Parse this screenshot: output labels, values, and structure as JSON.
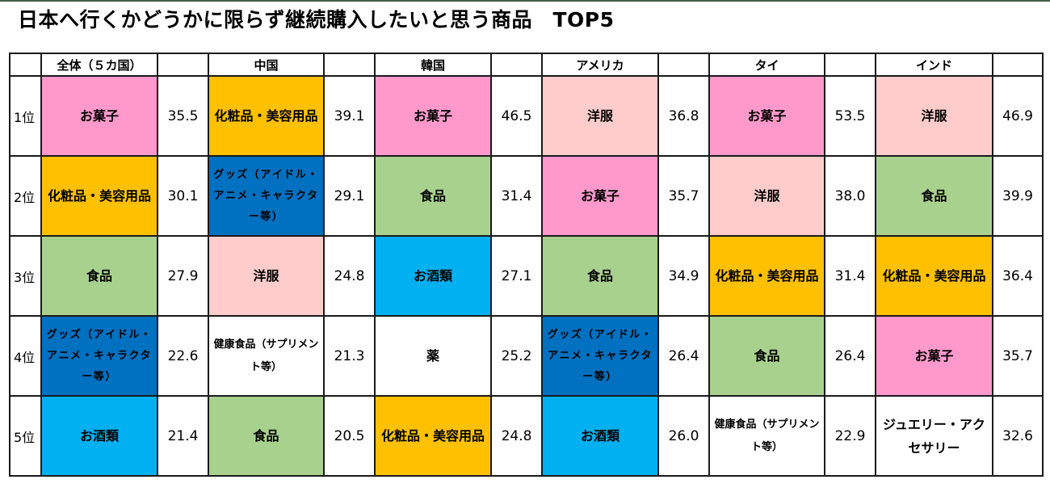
{
  "title": "日本へ行くかどうかに限らず継続購入したいと思う商品　TOP5",
  "colors": {
    "top_rule": "#4b5d4b",
    "お菓子": "#FF99CC",
    "洋服": "#FFCCCC",
    "化粧品・美容用品": "#FFC000",
    "食品": "#A9D18E",
    "グッズ（アイドル・アニメ・キャラクター等）": "#0070C0",
    "お酒類": "#00B0F0",
    "薬": "#FFFFFF",
    "健康食品（サプリメント等）": "#FFFFFF",
    "ジュエリー・アクセサリー": "#FFFFFF"
  },
  "columns": [
    "全体（５カ国）",
    "中国",
    "韓国",
    "アメリカ",
    "タイ",
    "インド"
  ],
  "ranks": [
    "1位",
    "2位",
    "3位",
    "4位",
    "5位"
  ],
  "rows": [
    [
      {
        "item": "お菓子",
        "value": "35.5"
      },
      {
        "item": "化粧品・美容用品",
        "value": "39.1"
      },
      {
        "item": "お菓子",
        "value": "46.5"
      },
      {
        "item": "洋服",
        "value": "36.8"
      },
      {
        "item": "お菓子",
        "value": "53.5"
      },
      {
        "item": "洋服",
        "value": "46.9"
      }
    ],
    [
      {
        "item": "化粧品・美容用品",
        "value": "30.1"
      },
      {
        "item": "グッズ（アイドル・アニメ・キャラクター等）",
        "value": "29.1"
      },
      {
        "item": "食品",
        "value": "31.4"
      },
      {
        "item": "お菓子",
        "value": "35.7"
      },
      {
        "item": "洋服",
        "value": "38.0"
      },
      {
        "item": "食品",
        "value": "39.9"
      }
    ],
    [
      {
        "item": "食品",
        "value": "27.9"
      },
      {
        "item": "洋服",
        "value": "24.8"
      },
      {
        "item": "お酒類",
        "value": "27.1"
      },
      {
        "item": "食品",
        "value": "34.9"
      },
      {
        "item": "化粧品・美容用品",
        "value": "31.4"
      },
      {
        "item": "化粧品・美容用品",
        "value": "36.4"
      }
    ],
    [
      {
        "item": "グッズ（アイドル・アニメ・キャラクター等）",
        "value": "22.6"
      },
      {
        "item": "健康食品（サプリメント等）",
        "value": "21.3"
      },
      {
        "item": "薬",
        "value": "25.2"
      },
      {
        "item": "グッズ（アイドル・アニメ・キャラクター等）",
        "value": "26.4"
      },
      {
        "item": "食品",
        "value": "26.4"
      },
      {
        "item": "お菓子",
        "value": "35.7"
      }
    ],
    [
      {
        "item": "お酒類",
        "value": "21.4"
      },
      {
        "item": "食品",
        "value": "20.5"
      },
      {
        "item": "化粧品・美容用品",
        "value": "24.8"
      },
      {
        "item": "お酒類",
        "value": "26.0"
      },
      {
        "item": "健康食品（サプリメント等）",
        "value": "22.9"
      },
      {
        "item": "ジュエリー・アクセサリー",
        "value": "32.6"
      }
    ]
  ],
  "chart_data": {
    "type": "table",
    "title": "日本へ行くかどうかに限らず継続購入したいと思う商品　TOP5",
    "columns": [
      "全体（５カ国）",
      "中国",
      "韓国",
      "アメリカ",
      "タイ",
      "インド"
    ],
    "row_labels": [
      "1位",
      "2位",
      "3位",
      "4位",
      "5位"
    ],
    "series": [
      {
        "name": "全体（５カ国）",
        "items": [
          "お菓子",
          "化粧品・美容用品",
          "食品",
          "グッズ（アイドル・アニメ・キャラクター等）",
          "お酒類"
        ],
        "values": [
          35.5,
          30.1,
          27.9,
          22.6,
          21.4
        ]
      },
      {
        "name": "中国",
        "items": [
          "化粧品・美容用品",
          "グッズ（アイドル・アニメ・キャラクター等）",
          "洋服",
          "健康食品（サプリメント等）",
          "食品"
        ],
        "values": [
          39.1,
          29.1,
          24.8,
          21.3,
          20.5
        ]
      },
      {
        "name": "韓国",
        "items": [
          "お菓子",
          "食品",
          "お酒類",
          "薬",
          "化粧品・美容用品"
        ],
        "values": [
          46.5,
          31.4,
          27.1,
          25.2,
          24.8
        ]
      },
      {
        "name": "アメリカ",
        "items": [
          "洋服",
          "お菓子",
          "食品",
          "グッズ（アイドル・アニメ・キャラクター等）",
          "お酒類"
        ],
        "values": [
          36.8,
          35.7,
          34.9,
          26.4,
          26.0
        ]
      },
      {
        "name": "タイ",
        "items": [
          "お菓子",
          "洋服",
          "化粧品・美容用品",
          "食品",
          "健康食品（サプリメント等）"
        ],
        "values": [
          53.5,
          38.0,
          31.4,
          26.4,
          22.9
        ]
      },
      {
        "name": "インド",
        "items": [
          "洋服",
          "食品",
          "化粧品・美容用品",
          "お菓子",
          "ジュエリー・アクセサリー"
        ],
        "values": [
          46.9,
          39.9,
          36.4,
          35.7,
          32.6
        ]
      }
    ]
  }
}
